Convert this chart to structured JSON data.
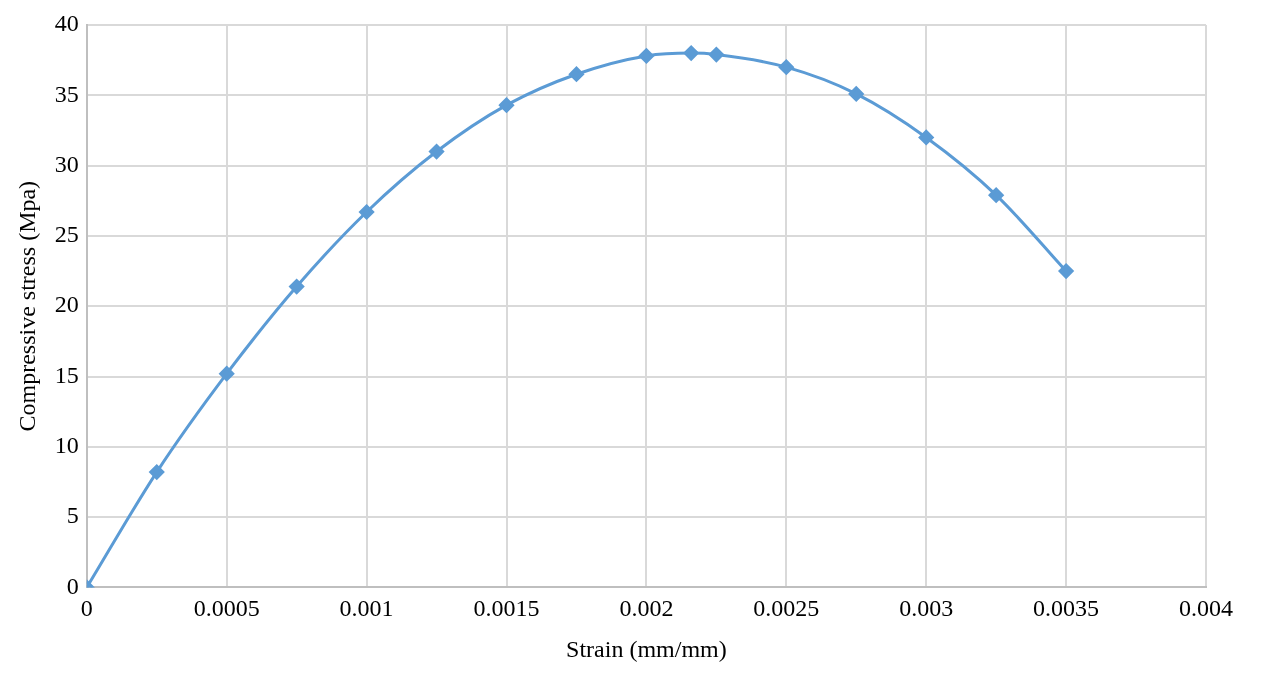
{
  "chart_data": {
    "type": "line",
    "xlabel": "Strain (mm/mm)",
    "ylabel": "Compressive stress (Mpa)",
    "x": [
      0,
      0.00025,
      0.0005,
      0.00075,
      0.001,
      0.00125,
      0.0015,
      0.00175,
      0.002,
      0.00216,
      0.00225,
      0.0025,
      0.00275,
      0.003,
      0.00325,
      0.0035
    ],
    "series": [
      {
        "color": "#5b9bd5",
        "values": [
          0,
          8.2,
          15.2,
          21.4,
          26.7,
          31.0,
          34.3,
          36.5,
          37.8,
          38.0,
          37.9,
          37.0,
          35.1,
          32.0,
          27.9,
          22.5
        ]
      }
    ],
    "xlim": [
      0,
      0.004
    ],
    "xticks": [
      0,
      0.0005,
      0.001,
      0.0015,
      0.002,
      0.0025,
      0.003,
      0.0035,
      0.004
    ],
    "ylim": [
      0,
      40
    ],
    "yticks": [
      0,
      5,
      10,
      15,
      20,
      25,
      30,
      35,
      40
    ],
    "grid": true,
    "legend": false,
    "marker": "diamond",
    "line_style": "solid"
  }
}
